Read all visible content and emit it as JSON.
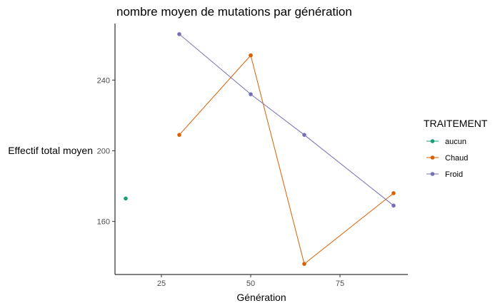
{
  "chart_data": {
    "type": "line",
    "title": "nombre moyen de mutations par génération",
    "xlabel": "Génération",
    "ylabel": "Effectif total moyen",
    "xlim": [
      12,
      94
    ],
    "ylim": [
      130,
      272
    ],
    "x_ticks": [
      25,
      50,
      75
    ],
    "y_ticks": [
      160,
      200,
      240
    ],
    "grid": false,
    "legend": {
      "title": "TRAITEMENT",
      "placement": "right"
    },
    "series": [
      {
        "name": "aucun",
        "color": "#1b9e77",
        "points": [
          [
            15,
            173
          ]
        ]
      },
      {
        "name": "Chaud",
        "color": "#d95f02",
        "points": [
          [
            30,
            209
          ],
          [
            50,
            254
          ],
          [
            65,
            136
          ],
          [
            90,
            176
          ]
        ]
      },
      {
        "name": "Froid",
        "color": "#7570b3",
        "points": [
          [
            30,
            266
          ],
          [
            50,
            232
          ],
          [
            65,
            209
          ],
          [
            90,
            169
          ]
        ]
      }
    ]
  }
}
